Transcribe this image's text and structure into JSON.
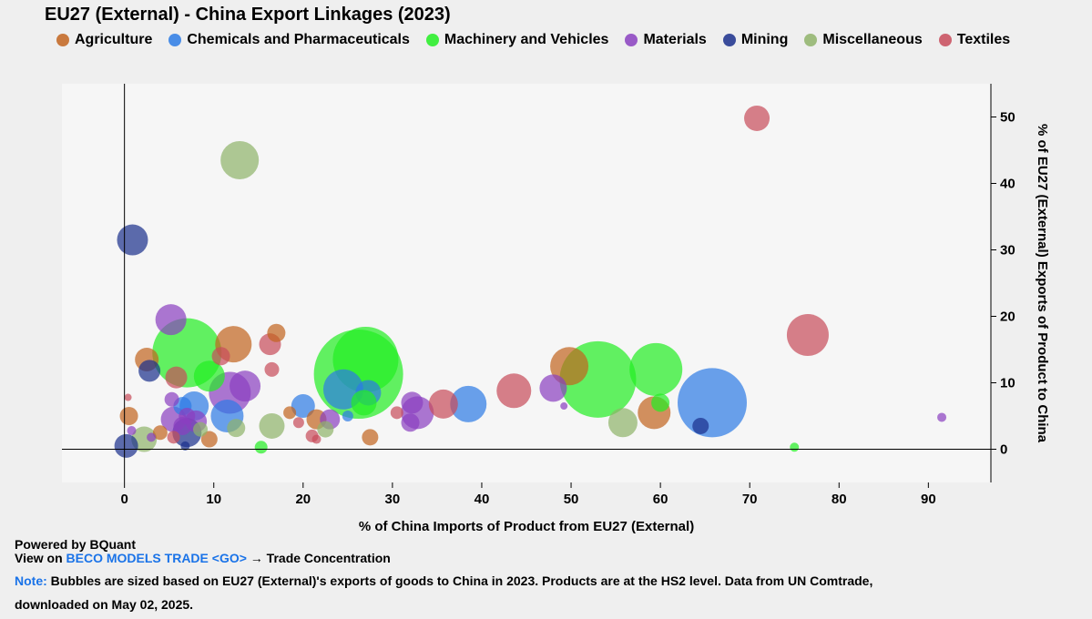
{
  "title": "EU27 (External) - China Export Linkages (2023)",
  "legend": [
    {
      "label": "Agriculture",
      "color": "#c2641e"
    },
    {
      "label": "Chemicals and Pharmaceuticals",
      "color": "#2c7be5"
    },
    {
      "label": "Machinery and Vehicles",
      "color": "#22ee22"
    },
    {
      "label": "Materials",
      "color": "#8a3fc0"
    },
    {
      "label": "Mining",
      "color": "#1a2f8c"
    },
    {
      "label": "Miscellaneous",
      "color": "#8fb36a"
    },
    {
      "label": "Textiles",
      "color": "#c84b5a"
    }
  ],
  "footer": {
    "powered": "Powered by BQuant",
    "view_prefix": "View on",
    "view_link": "BECO MODELS TRADE <GO>",
    "view_suffix": "→ Trade Concentration",
    "note_label": "Note:",
    "note_text": "Bubbles are sized based on EU27 (External)'s exports of goods to China in 2023. Products are at the HS2 level. Data from UN Comtrade,",
    "note_text2": "downloaded on May 02, 2025."
  },
  "chart_data": {
    "type": "scatter",
    "title": "EU27 (External) - China Export Linkages (2023)",
    "xlabel": "% of China Imports of Product from EU27 (External)",
    "ylabel": "% of EU27 (External) Exports of Product to China",
    "xlim": [
      -7,
      97
    ],
    "ylim": [
      -5,
      55
    ],
    "xticks": [
      0,
      10,
      20,
      30,
      40,
      50,
      60,
      70,
      80,
      90
    ],
    "yticks": [
      0,
      10,
      20,
      30,
      40,
      50
    ],
    "legend_position": "top",
    "series": [
      {
        "name": "Agriculture",
        "color": "#c2641e",
        "points": [
          {
            "x": 0.5,
            "y": 5,
            "r": 10
          },
          {
            "x": 2.5,
            "y": 13.5,
            "r": 13
          },
          {
            "x": 4,
            "y": 2.5,
            "r": 8
          },
          {
            "x": 9.5,
            "y": 1.5,
            "r": 9
          },
          {
            "x": 12.2,
            "y": 15.8,
            "r": 20
          },
          {
            "x": 17,
            "y": 17.5,
            "r": 10
          },
          {
            "x": 18.5,
            "y": 5.5,
            "r": 7
          },
          {
            "x": 21.5,
            "y": 4.5,
            "r": 11
          },
          {
            "x": 27.5,
            "y": 1.8,
            "r": 9
          },
          {
            "x": 49.8,
            "y": 12.5,
            "r": 21
          },
          {
            "x": 59.3,
            "y": 5.5,
            "r": 18
          }
        ]
      },
      {
        "name": "Chemicals and Pharmaceuticals",
        "color": "#2c7be5",
        "points": [
          {
            "x": 6.5,
            "y": 6.5,
            "r": 10
          },
          {
            "x": 7.8,
            "y": 6.5,
            "r": 16
          },
          {
            "x": 11.5,
            "y": 5,
            "r": 18
          },
          {
            "x": 20,
            "y": 6.5,
            "r": 13
          },
          {
            "x": 24.5,
            "y": 9,
            "r": 22
          },
          {
            "x": 25,
            "y": 5,
            "r": 6
          },
          {
            "x": 27.3,
            "y": 8.5,
            "r": 14
          },
          {
            "x": 38.5,
            "y": 6.8,
            "r": 20
          },
          {
            "x": 65.8,
            "y": 7,
            "r": 38
          }
        ]
      },
      {
        "name": "Machinery and Vehicles",
        "color": "#22ee22",
        "points": [
          {
            "x": 7,
            "y": 14.5,
            "r": 38
          },
          {
            "x": 9.5,
            "y": 11,
            "r": 17
          },
          {
            "x": 15.3,
            "y": 0.3,
            "r": 7
          },
          {
            "x": 26.2,
            "y": 11.3,
            "r": 49
          },
          {
            "x": 27,
            "y": 13.5,
            "r": 36
          },
          {
            "x": 26.8,
            "y": 7,
            "r": 14
          },
          {
            "x": 53,
            "y": 10.5,
            "r": 42
          },
          {
            "x": 59.5,
            "y": 12,
            "r": 29
          },
          {
            "x": 60,
            "y": 7,
            "r": 10
          },
          {
            "x": 75,
            "y": 0.3,
            "r": 5
          }
        ]
      },
      {
        "name": "Materials",
        "color": "#8a3fc0",
        "points": [
          {
            "x": 0.8,
            "y": 2.8,
            "r": 5
          },
          {
            "x": 3,
            "y": 1.8,
            "r": 5
          },
          {
            "x": 5.2,
            "y": 19.5,
            "r": 17
          },
          {
            "x": 5.5,
            "y": 4.5,
            "r": 14
          },
          {
            "x": 5.3,
            "y": 7.5,
            "r": 8
          },
          {
            "x": 6.5,
            "y": 3.5,
            "r": 10
          },
          {
            "x": 7,
            "y": 5,
            "r": 9
          },
          {
            "x": 8,
            "y": 4.2,
            "r": 12
          },
          {
            "x": 11.8,
            "y": 8.5,
            "r": 23
          },
          {
            "x": 13.5,
            "y": 9.5,
            "r": 17
          },
          {
            "x": 23,
            "y": 4.5,
            "r": 11
          },
          {
            "x": 32.2,
            "y": 7,
            "r": 12
          },
          {
            "x": 32.8,
            "y": 5.5,
            "r": 18
          },
          {
            "x": 32,
            "y": 4,
            "r": 10
          },
          {
            "x": 48,
            "y": 9.2,
            "r": 15
          },
          {
            "x": 49.2,
            "y": 6.5,
            "r": 4
          },
          {
            "x": 91.5,
            "y": 4.8,
            "r": 5
          }
        ]
      },
      {
        "name": "Mining",
        "color": "#1a2f8c",
        "points": [
          {
            "x": 0.9,
            "y": 31.5,
            "r": 17
          },
          {
            "x": 0.2,
            "y": 0.5,
            "r": 13
          },
          {
            "x": 2.8,
            "y": 11.8,
            "r": 12
          },
          {
            "x": 7,
            "y": 2.5,
            "r": 16
          },
          {
            "x": 6.8,
            "y": 0.5,
            "r": 5
          },
          {
            "x": 64.5,
            "y": 3.5,
            "r": 9
          }
        ]
      },
      {
        "name": "Miscellaneous",
        "color": "#8fb36a",
        "points": [
          {
            "x": 12.9,
            "y": 43.5,
            "r": 21
          },
          {
            "x": 2.2,
            "y": 1.5,
            "r": 14
          },
          {
            "x": 8.5,
            "y": 3,
            "r": 8
          },
          {
            "x": 12.5,
            "y": 3.2,
            "r": 10
          },
          {
            "x": 16.5,
            "y": 3.5,
            "r": 14
          },
          {
            "x": 22.5,
            "y": 3,
            "r": 9
          },
          {
            "x": 55.8,
            "y": 4,
            "r": 16
          }
        ]
      },
      {
        "name": "Textiles",
        "color": "#c84b5a",
        "points": [
          {
            "x": 0.4,
            "y": 7.8,
            "r": 4
          },
          {
            "x": 5.5,
            "y": 1.8,
            "r": 7
          },
          {
            "x": 5.8,
            "y": 10.8,
            "r": 12
          },
          {
            "x": 10.8,
            "y": 14,
            "r": 10
          },
          {
            "x": 16.3,
            "y": 15.8,
            "r": 12
          },
          {
            "x": 16.5,
            "y": 12,
            "r": 8
          },
          {
            "x": 19.5,
            "y": 4,
            "r": 6
          },
          {
            "x": 21,
            "y": 2,
            "r": 7
          },
          {
            "x": 21.5,
            "y": 1.5,
            "r": 5
          },
          {
            "x": 30.5,
            "y": 5.5,
            "r": 7
          },
          {
            "x": 35.7,
            "y": 6.8,
            "r": 16
          },
          {
            "x": 43.6,
            "y": 8.8,
            "r": 19
          },
          {
            "x": 70.8,
            "y": 49.8,
            "r": 14
          },
          {
            "x": 76.5,
            "y": 17.2,
            "r": 23
          }
        ]
      }
    ]
  }
}
